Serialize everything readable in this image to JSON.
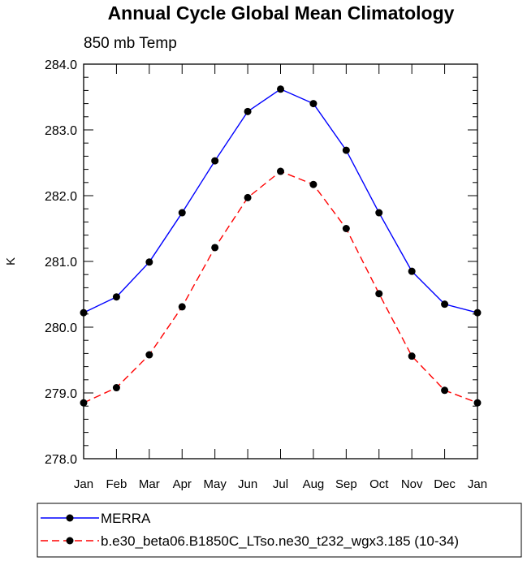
{
  "chart_data": {
    "type": "line",
    "title": "Annual Cycle Global Mean Climatology",
    "subtitle": "850 mb Temp",
    "xlabel": "",
    "ylabel": "K",
    "categories": [
      "Jan",
      "Feb",
      "Mar",
      "Apr",
      "May",
      "Jun",
      "Jul",
      "Aug",
      "Sep",
      "Oct",
      "Nov",
      "Dec",
      "Jan"
    ],
    "yticks": [
      "278.0",
      "279.0",
      "280.0",
      "281.0",
      "282.0",
      "283.0",
      "284.0"
    ],
    "ylim": [
      278.0,
      284.0
    ],
    "grid": false,
    "legend_position": "bottom",
    "series": [
      {
        "name": "MERRA",
        "color": "#0000ff",
        "dash": "solid",
        "values": [
          280.22,
          280.46,
          280.99,
          281.74,
          282.53,
          283.28,
          283.62,
          283.4,
          282.69,
          281.74,
          280.85,
          280.35,
          280.22
        ]
      },
      {
        "name": "b.e30_beta06.B1850C_LTso.ne30_t232_wgx3.185 (10-34)",
        "color": "#ff0000",
        "dash": "dashed",
        "values": [
          278.85,
          279.08,
          279.58,
          280.31,
          281.21,
          281.97,
          282.37,
          282.17,
          281.5,
          280.51,
          279.56,
          279.04,
          278.85
        ]
      }
    ]
  }
}
